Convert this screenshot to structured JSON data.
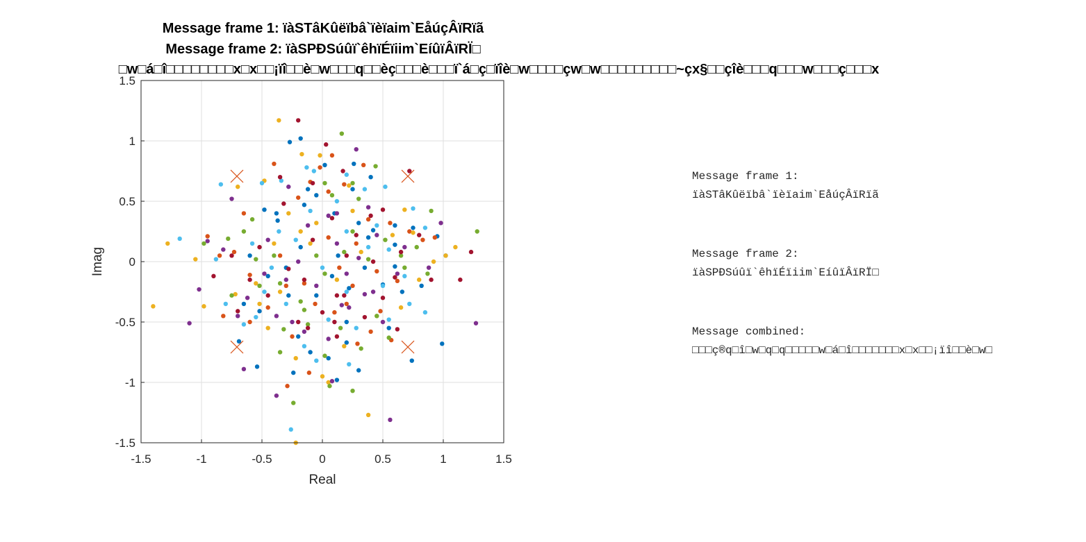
{
  "figure": {
    "title_lines": [
      "Message frame 1: ïàSTâKûëïbâ`ïèïaim`EåúçÂïRïã",
      "Message frame 2: ïàSPÐSúûï`êhïÉïiim`EíûïÂïRÏ□",
      "□w□á□î□□□□□□□□x□x□□¡ïî□□è□w□□□q□□èç□□□è□□□ï`á□ç□ïîè□w□□□□çw□w□□□□□□□□□~çx§□□çîè□□□q□□□w□□□ç□□□x"
    ]
  },
  "messages": {
    "frame1_label": "Message frame 1:",
    "frame1_value": "ïàSTâKûëïbâ`ïèïaim`EåúçÂïRïã",
    "frame2_label": "Message frame 2:",
    "frame2_value": "ïàSPÐSúûï`êhïÉïiim`EíûïÂïRÏ□",
    "combined_label": "Message combined:",
    "combined_value": "□□□ç®q□î□w□q□q□□□□□w□á□î□□□□□□□x□x□□¡ïî□□è□w□"
  },
  "chart_data": {
    "type": "scatter",
    "xlabel": "Real",
    "ylabel": "Imag",
    "xlim": [
      -1.5,
      1.5
    ],
    "ylim": [
      -1.5,
      1.5
    ],
    "xticks": [
      "-1.5",
      "-1",
      "-0.5",
      "0",
      "0.5",
      "1",
      "1.5"
    ],
    "yticks": [
      "1.5",
      "1",
      "0.5",
      "0",
      "-0.5",
      "-1",
      "-1.5"
    ],
    "xtick_values": [
      -1.5,
      -1,
      -0.5,
      0,
      0.5,
      1,
      1.5
    ],
    "ytick_values": [
      1.5,
      1,
      0.5,
      0,
      -0.5,
      -1,
      -1.5
    ],
    "grid": true,
    "reference_constellation": {
      "marker": "x",
      "color": "#D95319",
      "points": [
        [
          -0.707,
          0.707
        ],
        [
          0.707,
          0.707
        ],
        [
          -0.707,
          -0.707
        ],
        [
          0.707,
          -0.707
        ]
      ]
    },
    "series": [
      {
        "color": "#0072BD",
        "points": [
          [
            -0.27,
            0.99
          ],
          [
            -0.18,
            1.02
          ],
          [
            0.02,
            0.8
          ],
          [
            0.26,
            0.81
          ],
          [
            -0.48,
            0.43
          ],
          [
            -0.38,
            0.4
          ],
          [
            -0.15,
            0.47
          ],
          [
            -0.05,
            0.55
          ],
          [
            0.1,
            0.4
          ],
          [
            0.3,
            0.32
          ],
          [
            0.42,
            0.26
          ],
          [
            0.6,
            0.14
          ],
          [
            0.75,
            0.28
          ],
          [
            0.95,
            0.21
          ],
          [
            1.02,
            0.05
          ],
          [
            -0.6,
            0.05
          ],
          [
            -0.45,
            -0.12
          ],
          [
            -0.3,
            -0.05
          ],
          [
            -0.18,
            0.12
          ],
          [
            -0.05,
            -0.28
          ],
          [
            0.08,
            -0.12
          ],
          [
            0.22,
            -0.22
          ],
          [
            0.35,
            -0.05
          ],
          [
            0.5,
            -0.19
          ],
          [
            0.66,
            -0.25
          ],
          [
            0.82,
            -0.2
          ],
          [
            -0.65,
            -0.35
          ],
          [
            -0.52,
            -0.41
          ],
          [
            -0.2,
            -0.62
          ],
          [
            -0.1,
            -0.75
          ],
          [
            0.05,
            -0.8
          ],
          [
            0.2,
            -0.67
          ],
          [
            0.3,
            -0.9
          ],
          [
            -0.69,
            -0.66
          ],
          [
            -0.54,
            -0.87
          ],
          [
            -0.24,
            -0.92
          ],
          [
            0.12,
            -0.98
          ],
          [
            0.74,
            -0.82
          ],
          [
            0.99,
            -0.68
          ],
          [
            0.55,
            -0.55
          ],
          [
            0.4,
            0.7
          ],
          [
            -0.37,
            0.34
          ],
          [
            0.13,
            0.05
          ],
          [
            0.6,
            -0.04
          ],
          [
            -0.12,
            0.6
          ],
          [
            0.25,
            0.6
          ],
          [
            0.38,
            0.2
          ],
          [
            0.6,
            0.3
          ],
          [
            -0.28,
            -0.28
          ],
          [
            0.2,
            -0.5
          ]
        ]
      },
      {
        "color": "#D95319",
        "points": [
          [
            -0.4,
            0.81
          ],
          [
            -0.1,
            0.66
          ],
          [
            0.08,
            0.88
          ],
          [
            0.34,
            0.8
          ],
          [
            -0.65,
            0.4
          ],
          [
            -0.2,
            0.53
          ],
          [
            0.05,
            0.58
          ],
          [
            -0.95,
            0.21
          ],
          [
            -0.85,
            0.05
          ],
          [
            -0.6,
            -0.11
          ],
          [
            -0.35,
            0.05
          ],
          [
            -0.15,
            -0.18
          ],
          [
            0.14,
            -0.05
          ],
          [
            0.28,
            0.15
          ],
          [
            0.45,
            -0.08
          ],
          [
            0.62,
            -0.16
          ],
          [
            0.83,
            0.18
          ],
          [
            -0.82,
            -0.45
          ],
          [
            -0.6,
            -0.5
          ],
          [
            -0.45,
            -0.38
          ],
          [
            -0.25,
            -0.62
          ],
          [
            0.1,
            -0.42
          ],
          [
            0.29,
            -0.68
          ],
          [
            0.48,
            -0.41
          ],
          [
            -0.29,
            -1.03
          ],
          [
            -0.11,
            -0.92
          ],
          [
            -0.06,
            -0.35
          ],
          [
            0.05,
            0.2
          ],
          [
            0.38,
            0.35
          ],
          [
            0.56,
            0.32
          ],
          [
            0.72,
            0.25
          ],
          [
            0.93,
            0.2
          ],
          [
            -0.73,
            0.08
          ],
          [
            -0.3,
            -0.2
          ],
          [
            0.2,
            -0.35
          ],
          [
            0.4,
            -0.58
          ],
          [
            0.57,
            -0.65
          ],
          [
            0.18,
            0.64
          ],
          [
            -0.02,
            0.78
          ],
          [
            0.25,
            -0.2
          ]
        ]
      },
      {
        "color": "#EDB120",
        "points": [
          [
            -0.36,
            1.17
          ],
          [
            -0.17,
            0.89
          ],
          [
            -0.02,
            0.88
          ],
          [
            0.22,
            0.63
          ],
          [
            -0.7,
            0.62
          ],
          [
            -0.48,
            0.67
          ],
          [
            -0.28,
            0.4
          ],
          [
            -1.28,
            0.15
          ],
          [
            -1.05,
            0.02
          ],
          [
            -1.4,
            -0.37
          ],
          [
            -0.98,
            -0.37
          ],
          [
            -0.72,
            -0.27
          ],
          [
            -0.55,
            -0.18
          ],
          [
            -0.35,
            -0.25
          ],
          [
            -0.1,
            0.15
          ],
          [
            0.12,
            -0.15
          ],
          [
            0.32,
            0.08
          ],
          [
            0.58,
            0.22
          ],
          [
            0.68,
            0.43
          ],
          [
            0.75,
            0.24
          ],
          [
            0.92,
            0.0
          ],
          [
            1.1,
            0.12
          ],
          [
            1.02,
            0.05
          ],
          [
            -0.45,
            -0.55
          ],
          [
            -0.22,
            -0.8
          ],
          [
            0.0,
            -0.95
          ],
          [
            0.18,
            -0.7
          ],
          [
            0.38,
            -1.27
          ],
          [
            -0.22,
            -1.5
          ],
          [
            -0.52,
            -0.35
          ],
          [
            -0.18,
            0.25
          ],
          [
            0.45,
            -0.45
          ],
          [
            0.65,
            -0.38
          ],
          [
            0.05,
            -1.0
          ],
          [
            -0.4,
            0.15
          ],
          [
            0.8,
            -0.15
          ],
          [
            -0.05,
            0.32
          ],
          [
            0.25,
            0.42
          ]
        ]
      },
      {
        "color": "#7E2F8E",
        "points": [
          [
            0.28,
            0.93
          ],
          [
            -0.28,
            0.62
          ],
          [
            -0.12,
            0.3
          ],
          [
            0.12,
            0.4
          ],
          [
            0.38,
            0.45
          ],
          [
            -0.95,
            0.17
          ],
          [
            -0.82,
            0.1
          ],
          [
            -1.02,
            -0.23
          ],
          [
            -0.62,
            -0.3
          ],
          [
            -0.48,
            -0.1
          ],
          [
            -0.25,
            -0.5
          ],
          [
            -0.05,
            -0.2
          ],
          [
            0.16,
            -0.36
          ],
          [
            0.35,
            -0.27
          ],
          [
            0.5,
            -0.5
          ],
          [
            0.68,
            0.12
          ],
          [
            0.88,
            -0.05
          ],
          [
            1.27,
            -0.51
          ],
          [
            -1.1,
            -0.51
          ],
          [
            -0.7,
            -0.45
          ],
          [
            -0.38,
            -0.45
          ],
          [
            -0.15,
            -0.58
          ],
          [
            0.05,
            -0.64
          ],
          [
            0.22,
            -0.38
          ],
          [
            0.42,
            -0.25
          ],
          [
            0.56,
            -1.31
          ],
          [
            -0.38,
            -1.11
          ],
          [
            -0.65,
            -0.89
          ],
          [
            0.08,
            -0.99
          ],
          [
            -0.75,
            0.52
          ],
          [
            0.05,
            0.38
          ],
          [
            0.3,
            0.03
          ],
          [
            0.62,
            -0.1
          ],
          [
            0.98,
            0.32
          ],
          [
            -0.3,
            -0.15
          ],
          [
            0.12,
            0.15
          ],
          [
            -0.2,
            0.0
          ],
          [
            0.2,
            -0.1
          ],
          [
            0.45,
            0.22
          ],
          [
            -0.45,
            0.18
          ]
        ]
      },
      {
        "color": "#77AC30",
        "points": [
          [
            0.16,
            1.06
          ],
          [
            0.02,
            0.65
          ],
          [
            0.44,
            0.79
          ],
          [
            0.3,
            0.52
          ],
          [
            -0.65,
            0.25
          ],
          [
            -0.78,
            0.19
          ],
          [
            -0.98,
            0.15
          ],
          [
            -0.55,
            0.02
          ],
          [
            -0.35,
            -0.18
          ],
          [
            -0.18,
            -0.33
          ],
          [
            0.02,
            -0.1
          ],
          [
            0.18,
            0.08
          ],
          [
            0.38,
            0.02
          ],
          [
            0.52,
            0.18
          ],
          [
            0.68,
            -0.05
          ],
          [
            0.87,
            -0.1
          ],
          [
            1.28,
            0.25
          ],
          [
            0.9,
            0.42
          ],
          [
            -0.75,
            -0.28
          ],
          [
            -0.52,
            -0.2
          ],
          [
            -0.32,
            -0.56
          ],
          [
            -0.12,
            -0.52
          ],
          [
            0.02,
            -0.78
          ],
          [
            0.15,
            -0.55
          ],
          [
            0.32,
            -0.72
          ],
          [
            0.55,
            -0.63
          ],
          [
            -0.24,
            -1.17
          ],
          [
            0.25,
            -1.07
          ],
          [
            -0.35,
            -0.75
          ],
          [
            -0.58,
            0.35
          ],
          [
            -0.4,
            0.05
          ],
          [
            0.08,
            0.55
          ],
          [
            0.25,
            0.25
          ],
          [
            0.78,
            0.12
          ],
          [
            -0.15,
            -0.4
          ],
          [
            0.45,
            -0.45
          ],
          [
            0.06,
            -1.03
          ],
          [
            0.25,
            0.65
          ],
          [
            0.65,
            0.05
          ],
          [
            -0.05,
            0.05
          ]
        ]
      },
      {
        "color": "#4DBEEE",
        "points": [
          [
            -0.13,
            0.78
          ],
          [
            0.2,
            0.72
          ],
          [
            0.35,
            0.6
          ],
          [
            -0.5,
            0.65
          ],
          [
            -0.34,
            0.67
          ],
          [
            -0.07,
            0.75
          ],
          [
            0.52,
            0.62
          ],
          [
            -1.18,
            0.19
          ],
          [
            -0.88,
            0.02
          ],
          [
            -0.58,
            0.15
          ],
          [
            -0.42,
            -0.05
          ],
          [
            -0.22,
            0.18
          ],
          [
            0.0,
            -0.05
          ],
          [
            0.2,
            -0.25
          ],
          [
            0.38,
            0.12
          ],
          [
            0.55,
            0.1
          ],
          [
            0.75,
            0.44
          ],
          [
            0.85,
            0.28
          ],
          [
            -0.8,
            -0.35
          ],
          [
            -0.65,
            -0.52
          ],
          [
            -0.48,
            -0.25
          ],
          [
            -0.3,
            -0.35
          ],
          [
            -0.15,
            -0.7
          ],
          [
            0.05,
            -0.48
          ],
          [
            0.28,
            -0.55
          ],
          [
            0.5,
            -0.2
          ],
          [
            0.72,
            -0.35
          ],
          [
            0.85,
            -0.42
          ],
          [
            -0.26,
            -1.39
          ],
          [
            -0.05,
            -0.82
          ],
          [
            0.22,
            -0.85
          ],
          [
            -0.55,
            -0.46
          ],
          [
            0.2,
            0.25
          ],
          [
            0.55,
            -0.48
          ],
          [
            -0.84,
            0.64
          ],
          [
            -0.1,
            0.42
          ],
          [
            0.45,
            0.3
          ],
          [
            0.68,
            -0.12
          ],
          [
            -0.36,
            0.25
          ],
          [
            0.12,
            0.5
          ]
        ]
      },
      {
        "color": "#A2142F",
        "points": [
          [
            -0.2,
            1.17
          ],
          [
            0.03,
            0.97
          ],
          [
            0.17,
            0.75
          ],
          [
            0.72,
            0.75
          ],
          [
            -0.32,
            0.48
          ],
          [
            -0.08,
            0.65
          ],
          [
            0.08,
            0.36
          ],
          [
            0.5,
            0.43
          ],
          [
            -0.75,
            0.05
          ],
          [
            -0.52,
            0.12
          ],
          [
            -0.28,
            -0.06
          ],
          [
            -0.08,
            0.18
          ],
          [
            0.12,
            -0.28
          ],
          [
            0.28,
            0.22
          ],
          [
            0.42,
            0.0
          ],
          [
            0.6,
            -0.13
          ],
          [
            0.8,
            0.22
          ],
          [
            1.14,
            -0.15
          ],
          [
            1.23,
            0.08
          ],
          [
            -0.9,
            -0.12
          ],
          [
            -0.7,
            -0.41
          ],
          [
            -0.45,
            -0.28
          ],
          [
            -0.2,
            -0.5
          ],
          [
            0.0,
            -0.42
          ],
          [
            0.18,
            -0.28
          ],
          [
            0.35,
            -0.46
          ],
          [
            0.62,
            -0.56
          ],
          [
            0.9,
            -0.15
          ],
          [
            -0.12,
            -0.55
          ],
          [
            0.12,
            -0.62
          ],
          [
            -0.35,
            0.7
          ],
          [
            0.2,
            0.05
          ],
          [
            -0.15,
            -0.15
          ],
          [
            0.65,
            0.08
          ],
          [
            0.4,
            0.38
          ],
          [
            0.1,
            -0.5
          ],
          [
            -0.6,
            -0.15
          ],
          [
            0.5,
            -0.3
          ]
        ]
      }
    ]
  }
}
